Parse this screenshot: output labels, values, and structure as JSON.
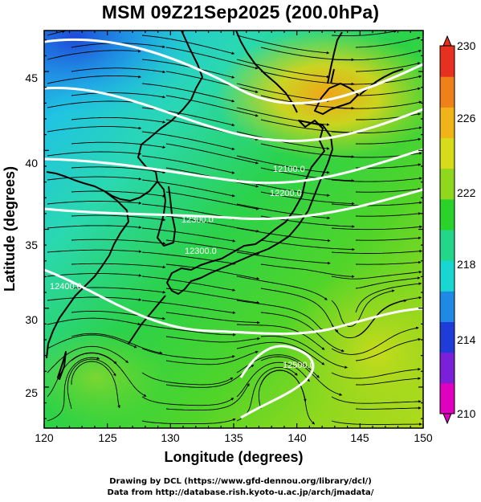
{
  "title": "MSM 09Z21Sep2025 (200.0hPa)",
  "map": {
    "lon_range": [
      120,
      150
    ],
    "lat_range": [
      22.4,
      47.6
    ],
    "x_ticks": [
      "120",
      "125",
      "130",
      "135",
      "140",
      "145",
      "150"
    ],
    "y_ticks": [
      "25",
      "30",
      "35",
      "40",
      "45"
    ],
    "xlabel": "Longitude (degrees)",
    "ylabel": "Latitude  (degrees)",
    "field": "temperature",
    "contour_color": "#ffffff",
    "vector_color": "#000000",
    "contour_labels": [
      "12300.0",
      "12200.0",
      "12100.0",
      "12400.0",
      "12500.0",
      "12500.0"
    ]
  },
  "colorbar": {
    "min": 210,
    "max": 230,
    "labels": [
      "230",
      "226",
      "222",
      "218",
      "214",
      "210"
    ],
    "colors": [
      "#e000c0",
      "#7a20d8",
      "#1f3cd8",
      "#1f8ae6",
      "#18d6d0",
      "#22d68a",
      "#2ad22a",
      "#8fd81e",
      "#d7dc1a",
      "#f0b418",
      "#f08018",
      "#e83020"
    ]
  },
  "credits": {
    "line1": "Drawing by DCL (https://www.gfd-dennou.org/library/dcl/)",
    "line2": "Data from http://database.rish.kyoto-u.ac.jp/arch/jmadata/"
  }
}
